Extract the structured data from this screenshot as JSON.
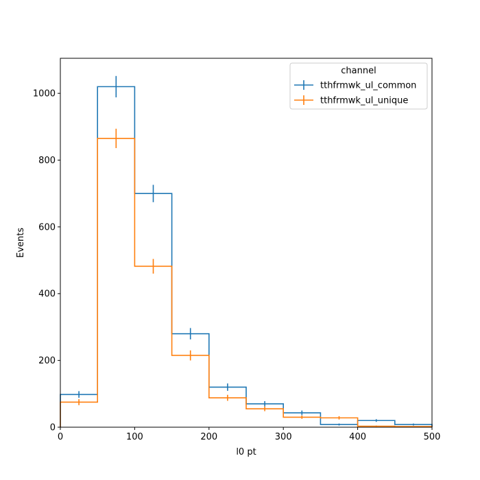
{
  "chart_data": {
    "type": "histogram",
    "xlabel": "l0 pt",
    "ylabel": "Events",
    "xlim": [
      0,
      500
    ],
    "ylim": [
      0,
      1105
    ],
    "xticks": [
      0,
      100,
      200,
      300,
      400,
      500
    ],
    "yticks": [
      0,
      200,
      400,
      600,
      800,
      1000
    ],
    "bin_edges": [
      0,
      50,
      100,
      150,
      200,
      250,
      300,
      350,
      400,
      450,
      500
    ],
    "legend": {
      "title": "channel",
      "placement": "top-right"
    },
    "grid": false,
    "series": [
      {
        "name": "tthfrmwk_ul_common",
        "color": "#1f77b4",
        "values": [
          98,
          1020,
          700,
          280,
          120,
          70,
          43,
          8,
          20,
          8
        ],
        "errors": [
          10,
          32,
          26,
          17,
          11,
          8,
          7,
          3,
          4,
          3
        ]
      },
      {
        "name": "tthfrmwk_ul_unique",
        "color": "#ff7f0e",
        "values": [
          75,
          865,
          482,
          215,
          88,
          55,
          30,
          28,
          3,
          2
        ],
        "errors": [
          9,
          29,
          22,
          15,
          9,
          7,
          5,
          5,
          2,
          1
        ]
      }
    ]
  }
}
